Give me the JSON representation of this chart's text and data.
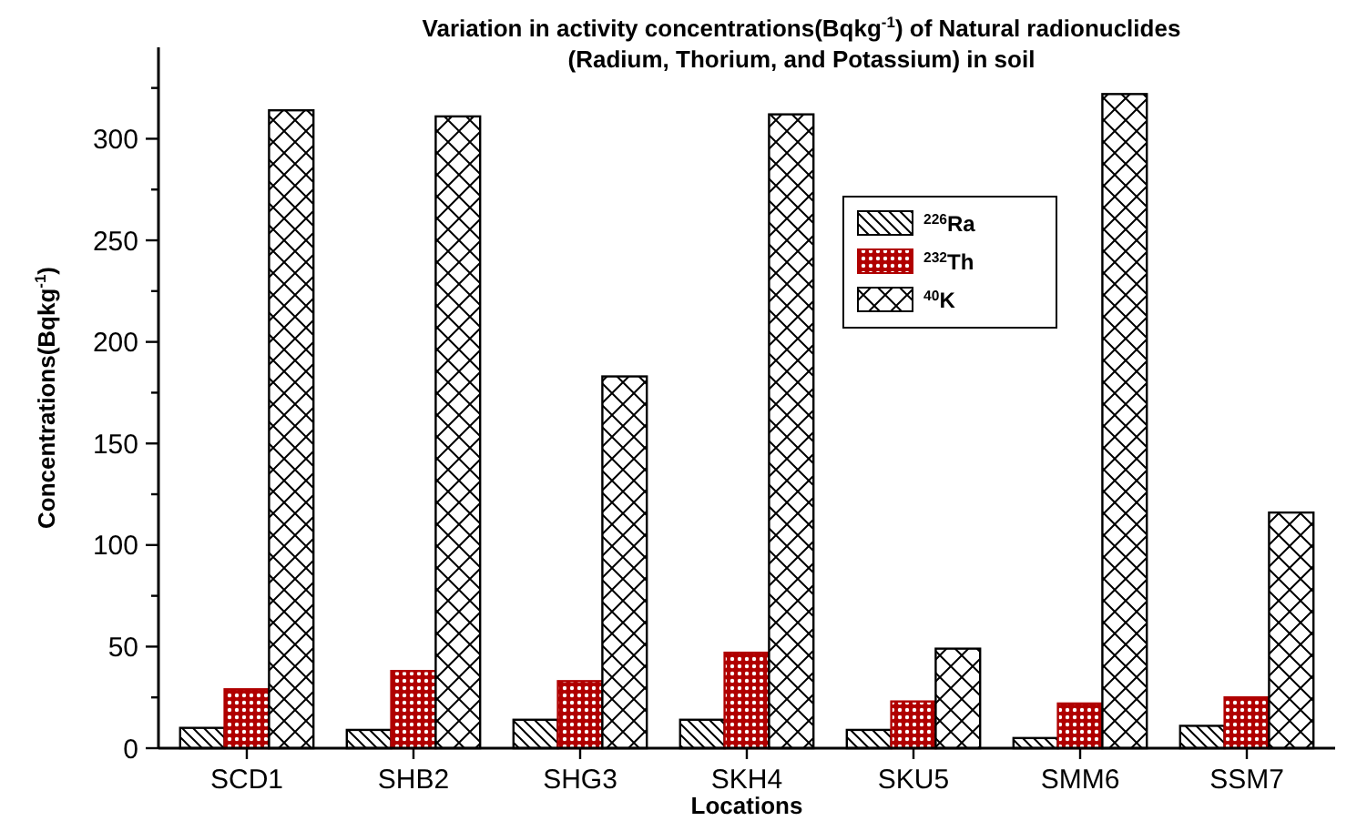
{
  "chart_data": {
    "type": "bar",
    "title": "Variation in activity concentrations(Bqkg$^{-1}$) of Natural radionuclides",
    "subtitle": "(Radium, Thorium, and Potassium) in soil",
    "xlabel": "Locations",
    "ylabel": "Concentrations(Bqkg$^{-1}$)",
    "categories": [
      "SCD1",
      "SHB2",
      "SHG3",
      "SKH4",
      "SKU5",
      "SMM6",
      "SSM7"
    ],
    "series": [
      {
        "name": "$^{226}$Ra",
        "color": "#000000",
        "values": [
          10,
          9,
          14,
          14,
          9,
          5,
          11
        ]
      },
      {
        "name": "$^{232}$Th",
        "color": "#b00000",
        "values": [
          29,
          38,
          33,
          47,
          23,
          22,
          25
        ]
      },
      {
        "name": "$^{40}$K",
        "color": "#000000",
        "values": [
          314,
          311,
          183,
          312,
          49,
          322,
          116
        ]
      }
    ],
    "ylim": [
      0,
      345
    ],
    "yticks": [
      0,
      {
        "value": 25,
        "label": null
      },
      50,
      {
        "value": 75,
        "label": null
      },
      100,
      {
        "value": 125,
        "label": null
      },
      150,
      {
        "value": 175,
        "label": null
      },
      200,
      {
        "value": 225,
        "label": null
      },
      250,
      {
        "value": 275,
        "label": null
      },
      300,
      {
        "value": 325,
        "label": null
      }
    ],
    "grid": false,
    "legend": "top right"
  }
}
